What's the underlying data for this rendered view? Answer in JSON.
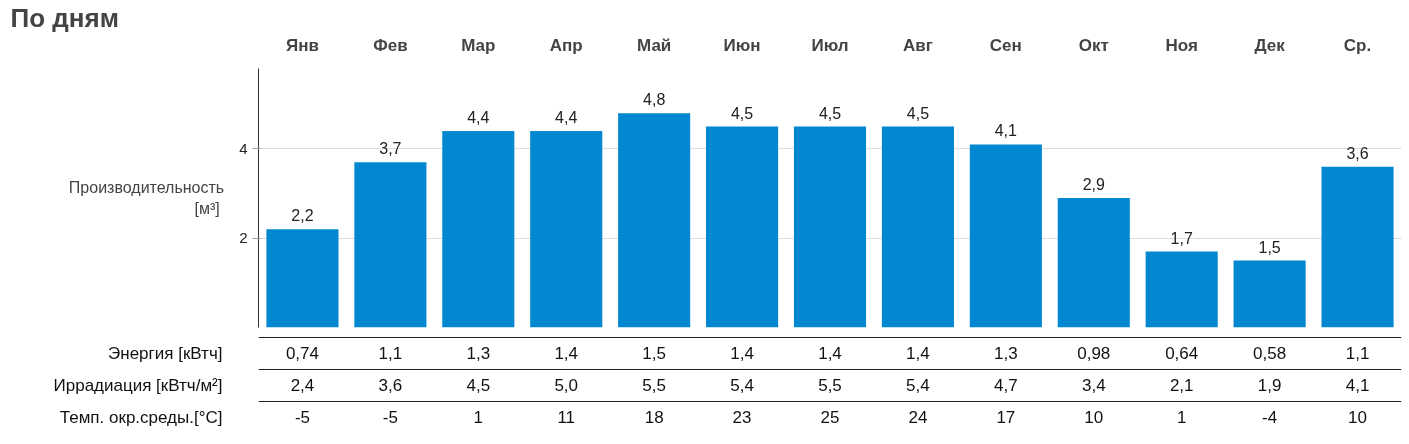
{
  "chart_data": {
    "type": "bar",
    "title": "По дням",
    "ylabel": "Производительность\n [м³]",
    "categories": [
      "Янв",
      "Фев",
      "Мар",
      "Апр",
      "Май",
      "Июн",
      "Июл",
      "Авг",
      "Сен",
      "Окт",
      "Ноя",
      "Дек",
      "Ср."
    ],
    "ylim": [
      0,
      5.8
    ],
    "yticks": [
      2,
      4
    ],
    "grid": "y",
    "color": "#0288d1",
    "values": [
      2.2,
      3.7,
      4.4,
      4.4,
      4.8,
      4.5,
      4.5,
      4.5,
      4.1,
      2.9,
      1.7,
      1.5,
      3.6
    ],
    "value_labels": [
      "2,2",
      "3,7",
      "4,4",
      "4,4",
      "4,8",
      "4,5",
      "4,5",
      "4,5",
      "4,1",
      "2,9",
      "1,7",
      "1,5",
      "3,6"
    ],
    "annotations": [
      "Энергия [кВтч]",
      "0,74",
      "1,1",
      "1,3",
      "1,4",
      "1,5",
      "1,4",
      "1,4",
      "1,4",
      "1,3",
      "0,98",
      "0,64",
      "0,58",
      "1,1",
      "Иррадиация [кВтч/м²]",
      "2,4",
      "3,6",
      "4,5",
      "5,0",
      "5,5",
      "5,4",
      "5,5",
      "5,4",
      "4,7",
      "3,4",
      "2,1",
      "1,9",
      "4,1",
      "Темп. окр.среды.[°C]",
      "-5",
      "-5",
      "1",
      "11",
      "18",
      "23",
      "25",
      "24",
      "17",
      "10",
      "1",
      "-4",
      "10"
    ]
  }
}
